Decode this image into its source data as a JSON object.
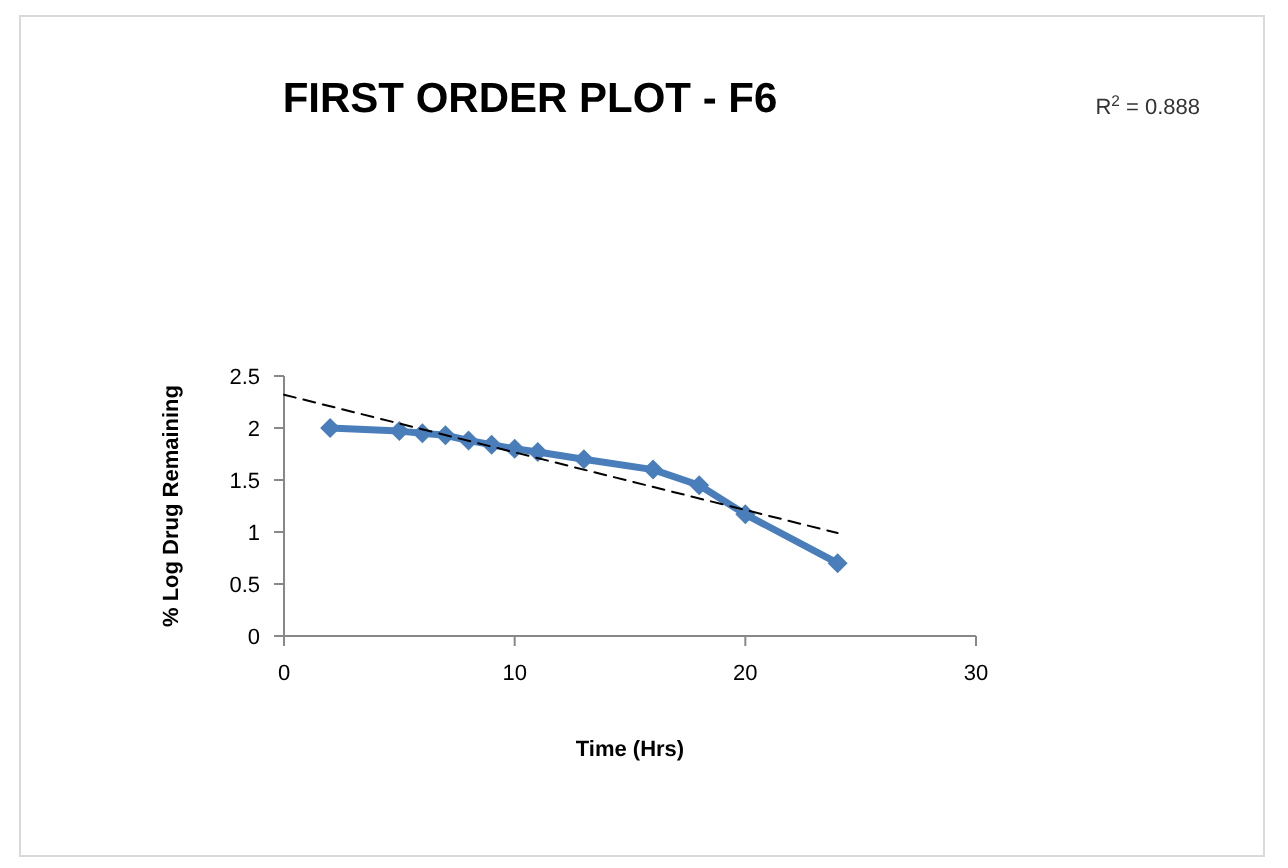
{
  "chart_data": {
    "type": "line",
    "title": "FIRST ORDER PLOT - F6",
    "xlabel": "Time (Hrs)",
    "ylabel": "% Log Drug Remaining",
    "annotations": [
      "R$^{2}$ = 0.888"
    ],
    "x": [
      2,
      5,
      6,
      7,
      8,
      9,
      10,
      11,
      13,
      16,
      18,
      20,
      24
    ],
    "series": [
      {
        "color": "#4a7ebb",
        "values": [
          2.0,
          1.97,
          1.95,
          1.93,
          1.88,
          1.84,
          1.8,
          1.77,
          1.7,
          1.6,
          1.45,
          1.17,
          0.7
        ],
        "marker": "diamond",
        "line_style": "solid"
      },
      {
        "type": "line",
        "x": [
          0,
          24
        ],
        "color": "#000000",
        "values": [
          2.32,
          0.99
        ],
        "marker": "none",
        "line_style": "dashed"
      }
    ],
    "xlim": [
      0,
      30
    ],
    "xticks": [
      0,
      10,
      20,
      30
    ],
    "ylim": [
      0,
      2.5
    ],
    "yticks": [
      0,
      0.5,
      1,
      1.5,
      2,
      2.5
    ],
    "grid": false
  }
}
